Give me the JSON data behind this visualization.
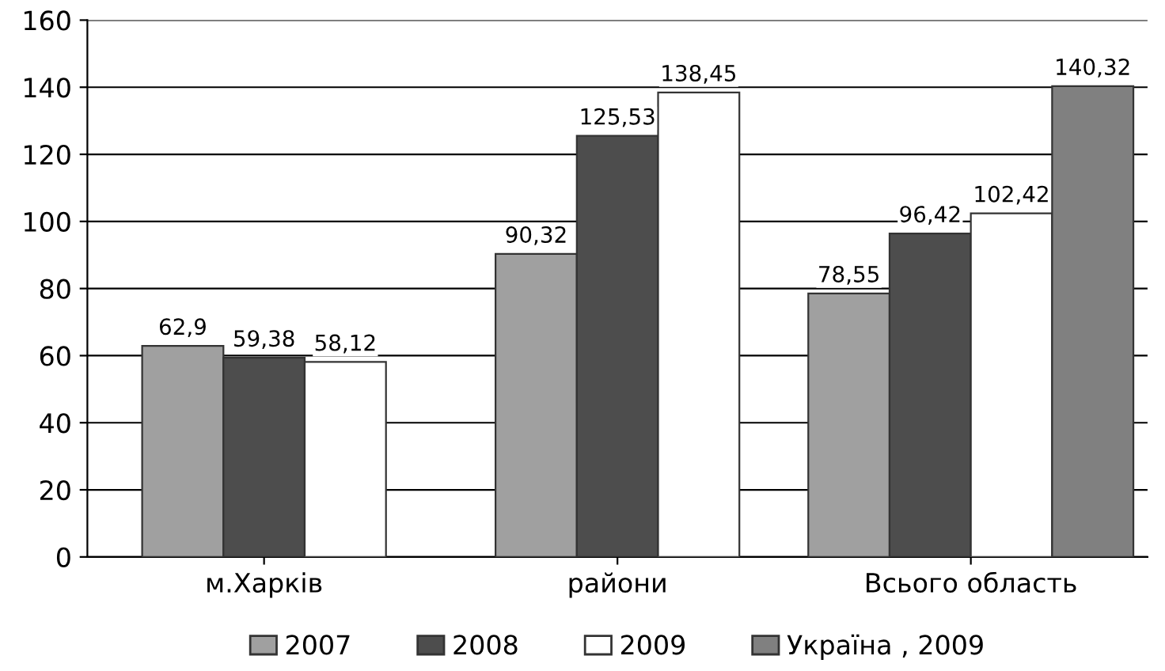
{
  "chart_data": {
    "type": "bar",
    "categories": [
      "м.Харків",
      "райони",
      "Всього область"
    ],
    "series": [
      {
        "name": "2007",
        "color": "#a0a0a0",
        "values": [
          62.9,
          90.32,
          78.55
        ],
        "value_labels": [
          "62,9",
          "90,32",
          "78,55"
        ]
      },
      {
        "name": "2008",
        "color": "#4d4d4d",
        "values": [
          59.38,
          125.53,
          96.42
        ],
        "value_labels": [
          "59,38",
          "125,53",
          "96,42"
        ]
      },
      {
        "name": "2009",
        "color": "#ffffff",
        "values": [
          58.12,
          138.45,
          102.42
        ],
        "value_labels": [
          "58,12",
          "138,45",
          "102,42"
        ]
      },
      {
        "name": "Україна , 2009",
        "color": "#808080",
        "values": [
          null,
          null,
          140.32
        ],
        "value_labels": [
          null,
          null,
          "140,32"
        ]
      }
    ],
    "ylim": [
      0,
      160
    ],
    "yticks": [
      0,
      20,
      40,
      60,
      80,
      100,
      120,
      140,
      160
    ],
    "grid": "y",
    "legend": "bottom"
  }
}
